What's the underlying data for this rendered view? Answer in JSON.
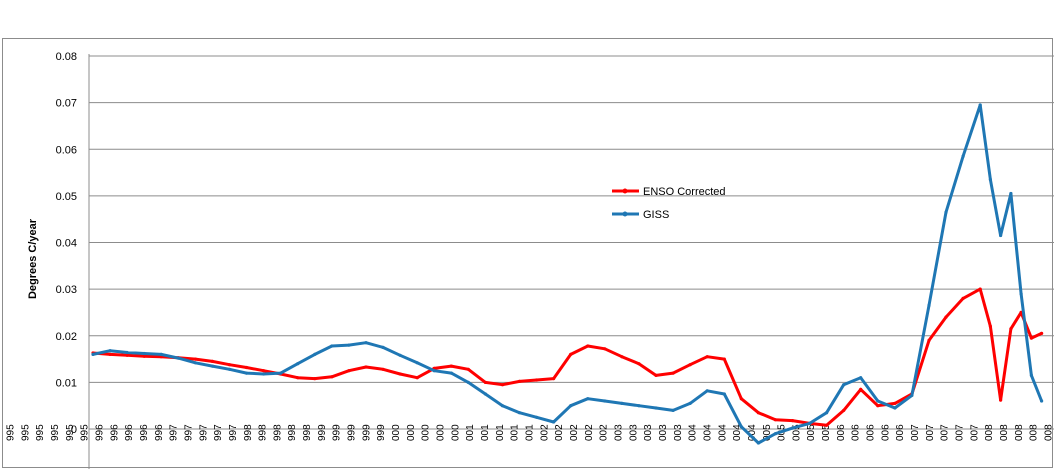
{
  "chart_data": {
    "type": "line",
    "title": "",
    "xlabel": "",
    "ylabel": "Degrees C/year",
    "ylim": [
      -0.007,
      0.08
    ],
    "yticks": [
      "0.08",
      "0.07",
      "0.06",
      "0.05",
      "0.04",
      "0.03",
      "0.02",
      "0.01",
      "0"
    ],
    "ytick_values": [
      0.08,
      0.07,
      0.06,
      0.05,
      0.04,
      0.03,
      0.02,
      0.01,
      0
    ],
    "grid": true,
    "legend_position": "center-right",
    "x_tick_labels": [
      "995",
      "995",
      "995",
      "995",
      "995",
      "995",
      "996",
      "996",
      "996",
      "996",
      "996",
      "997",
      "997",
      "997",
      "997",
      "997",
      "998",
      "998",
      "998",
      "998",
      "998",
      "999",
      "999",
      "999",
      "999",
      "999",
      "000",
      "000",
      "000",
      "000",
      "000",
      "001",
      "001",
      "001",
      "001",
      "001",
      "002",
      "002",
      "002",
      "002",
      "002",
      "003",
      "003",
      "003",
      "003",
      "003",
      "004",
      "004",
      "004",
      "004",
      "004",
      "005",
      "005",
      "005",
      "005",
      "005",
      "006",
      "006",
      "006",
      "006",
      "006",
      "007",
      "007",
      "007",
      "007",
      "007",
      "008",
      "008",
      "008",
      "008",
      "008"
    ],
    "x": [
      1995.0,
      1995.25,
      1995.5,
      1995.75,
      1996.0,
      1996.25,
      1996.5,
      1996.75,
      1997.0,
      1997.25,
      1997.5,
      1997.75,
      1998.0,
      1998.25,
      1998.5,
      1998.75,
      1999.0,
      1999.25,
      1999.5,
      1999.75,
      2000.0,
      2000.25,
      2000.5,
      2000.75,
      2001.0,
      2001.25,
      2001.5,
      2001.75,
      2002.0,
      2002.25,
      2002.5,
      2002.75,
      2003.0,
      2003.25,
      2003.5,
      2003.75,
      2004.0,
      2004.25,
      2004.5,
      2004.75,
      2005.0,
      2005.25,
      2005.5,
      2005.75,
      2006.0,
      2006.25,
      2006.5,
      2006.75,
      2007.0,
      2007.25,
      2007.5,
      2007.75,
      2008.0,
      2008.15,
      2008.3,
      2008.45,
      2008.6,
      2008.75,
      2008.9
    ],
    "series": [
      {
        "name": "ENSO Corrected",
        "color": "#ff0000",
        "values": [
          0.0163,
          0.016,
          0.0158,
          0.0156,
          0.0155,
          0.0153,
          0.015,
          0.0145,
          0.0138,
          0.0132,
          0.0125,
          0.0118,
          0.011,
          0.0108,
          0.0112,
          0.0125,
          0.0133,
          0.0128,
          0.0118,
          0.011,
          0.013,
          0.0135,
          0.0128,
          0.01,
          0.0095,
          0.0102,
          0.0105,
          0.0108,
          0.016,
          0.0178,
          0.0172,
          0.0155,
          0.014,
          0.0115,
          0.012,
          0.0138,
          0.0155,
          0.015,
          0.0065,
          0.0035,
          0.002,
          0.0018,
          0.0012,
          0.0008,
          0.004,
          0.0085,
          0.005,
          0.0055,
          0.0075,
          0.019,
          0.024,
          0.028,
          0.03,
          0.022,
          0.0062,
          0.0215,
          0.025,
          0.0195,
          0.0205
        ]
      },
      {
        "name": "GISS",
        "color": "#1f77b4",
        "values": [
          0.016,
          0.0168,
          0.0164,
          0.0162,
          0.016,
          0.0152,
          0.0142,
          0.0135,
          0.0128,
          0.012,
          0.0118,
          0.012,
          0.014,
          0.016,
          0.0178,
          0.018,
          0.0185,
          0.0175,
          0.0158,
          0.0142,
          0.0125,
          0.012,
          0.01,
          0.0075,
          0.005,
          0.0035,
          0.0025,
          0.0015,
          0.005,
          0.0065,
          0.006,
          0.0055,
          0.005,
          0.0045,
          0.004,
          0.0055,
          0.0082,
          0.0075,
          0.0005,
          -0.003,
          -0.001,
          0.0002,
          0.0012,
          0.0035,
          0.0095,
          0.011,
          0.006,
          0.0045,
          0.0072,
          0.0265,
          0.0465,
          0.0585,
          0.0695,
          0.0535,
          0.0415,
          0.0505,
          0.029,
          0.0115,
          0.006
        ]
      }
    ]
  }
}
